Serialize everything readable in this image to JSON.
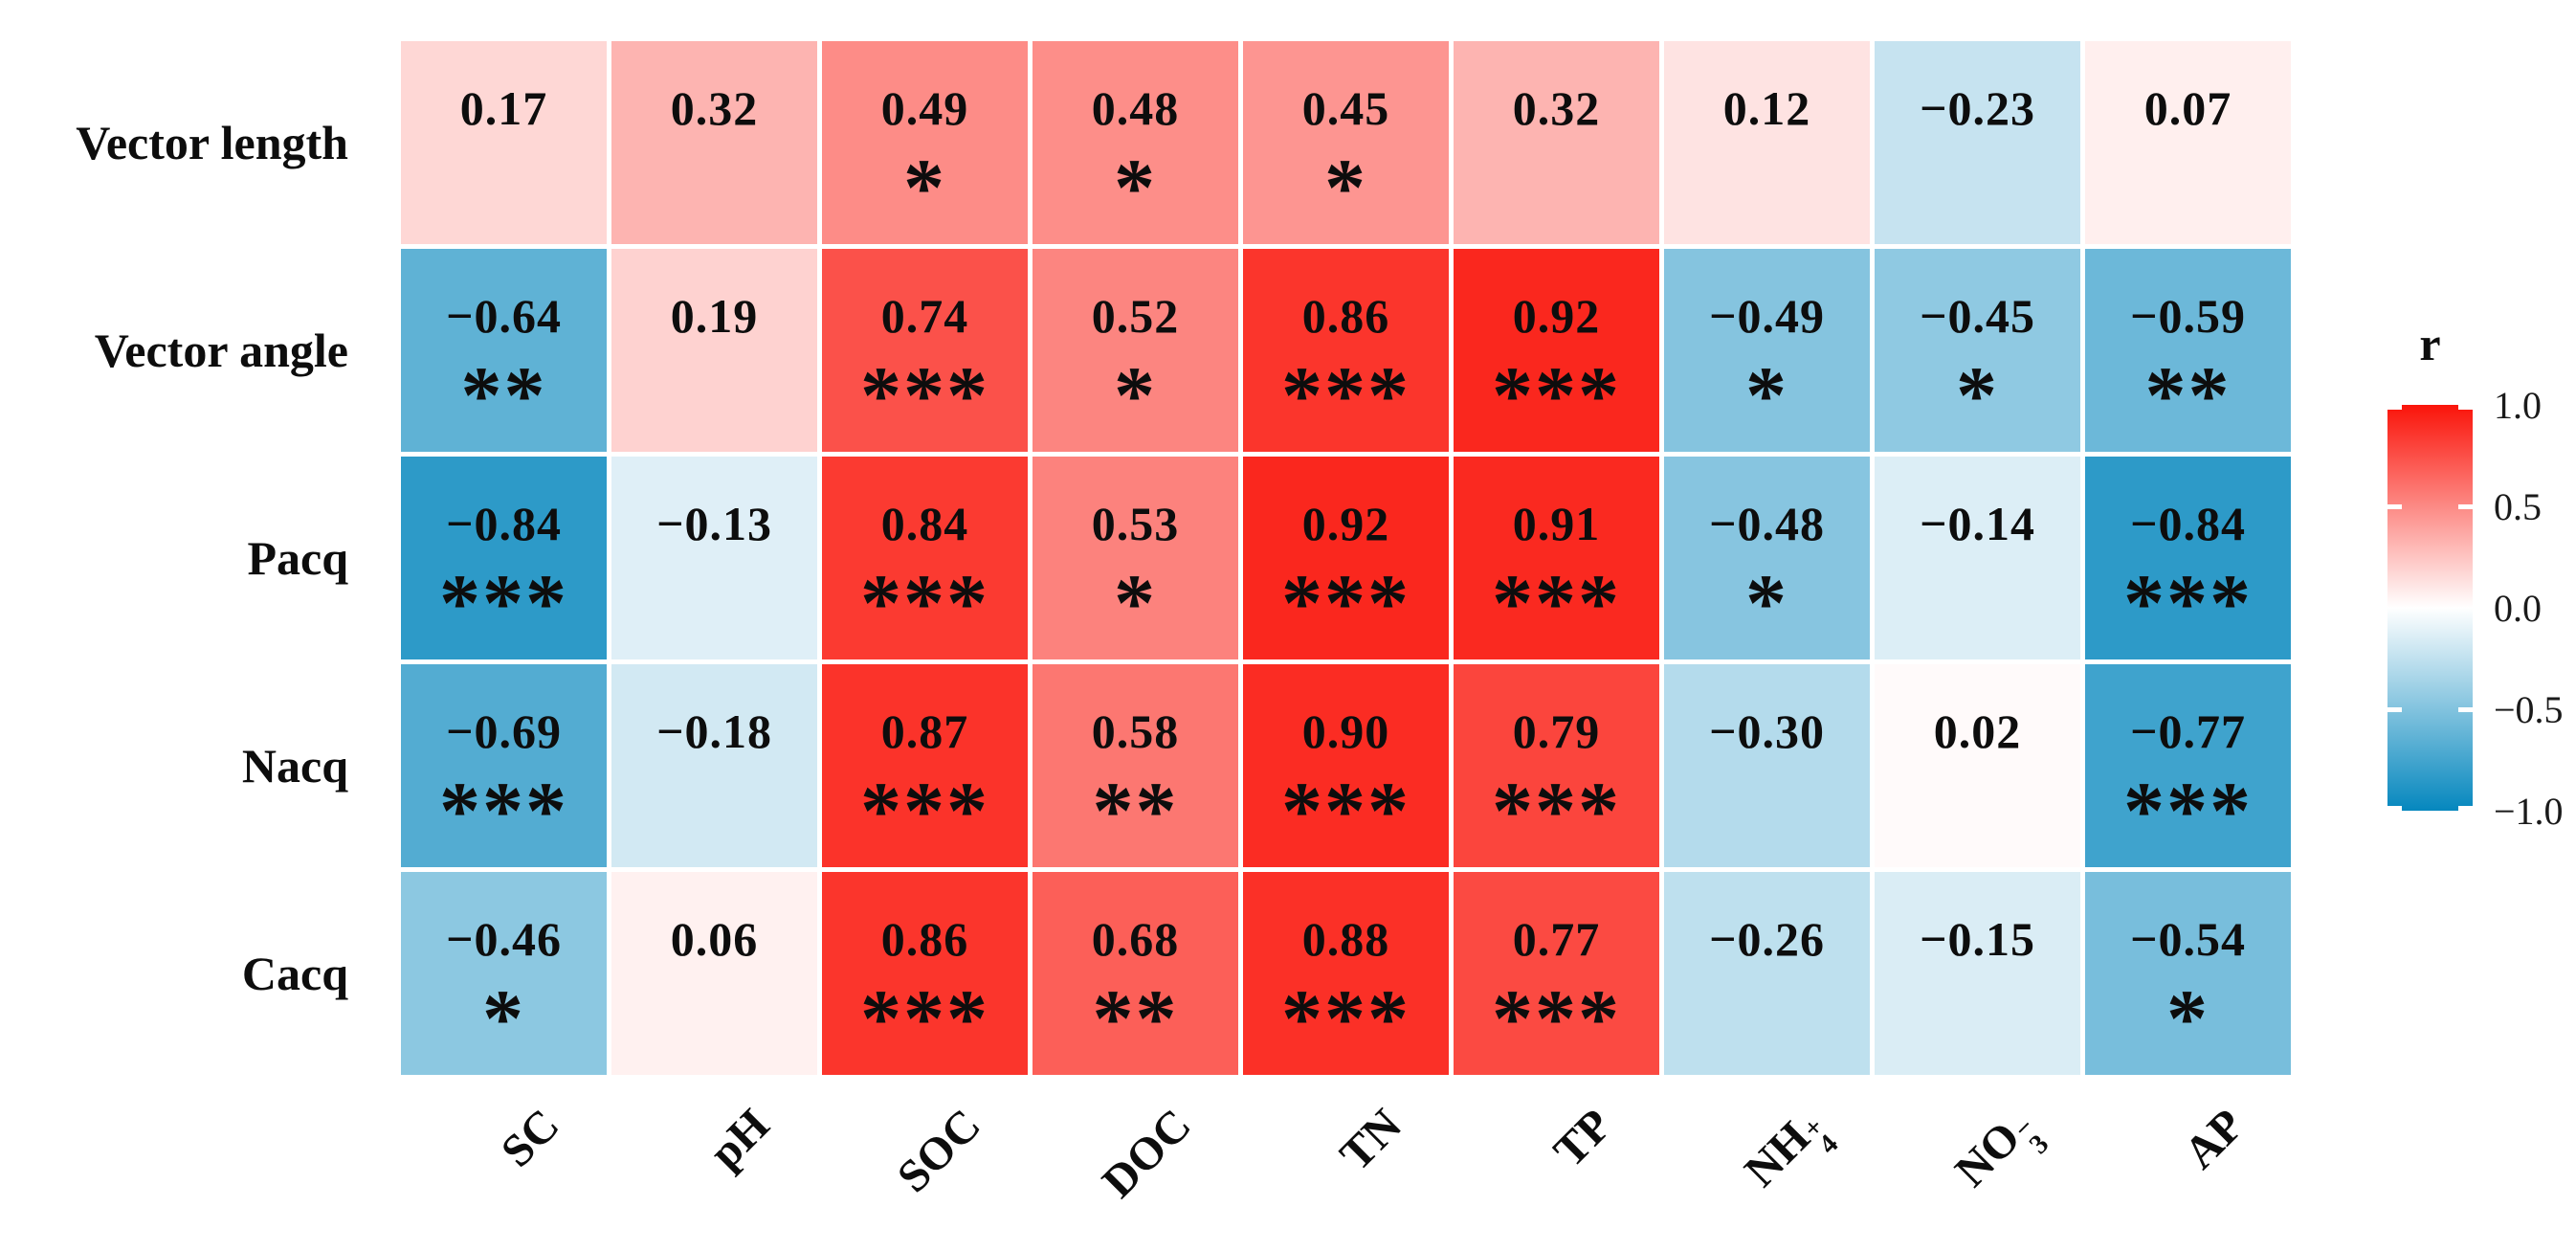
{
  "figure": {
    "background": "#ffffff",
    "text_color": "#0d0d0d"
  },
  "chart_data": {
    "type": "heatmap",
    "description": "Correlation heatmap of r values with significance stars",
    "rows": [
      "Vector length",
      "Vector angle",
      "Pacq",
      "Nacq",
      "Cacq"
    ],
    "columns": [
      {
        "text": "SC"
      },
      {
        "text": "pH"
      },
      {
        "text": "SOC"
      },
      {
        "text": "DOC"
      },
      {
        "text": "TN"
      },
      {
        "text": "TP"
      },
      {
        "text": "NH",
        "sub": "4",
        "sup": "+"
      },
      {
        "text": "NO",
        "sub": "3",
        "sup": "−"
      },
      {
        "text": "AP"
      }
    ],
    "values": [
      [
        0.17,
        0.32,
        0.49,
        0.48,
        0.45,
        0.32,
        0.12,
        -0.23,
        0.07
      ],
      [
        -0.64,
        0.19,
        0.74,
        0.52,
        0.86,
        0.92,
        -0.49,
        -0.45,
        -0.59
      ],
      [
        -0.84,
        -0.13,
        0.84,
        0.53,
        0.92,
        0.91,
        -0.48,
        -0.14,
        -0.84
      ],
      [
        -0.69,
        -0.18,
        0.87,
        0.58,
        0.9,
        0.79,
        -0.3,
        0.02,
        -0.77
      ],
      [
        -0.46,
        0.06,
        0.86,
        0.68,
        0.88,
        0.77,
        -0.26,
        -0.15,
        -0.54
      ]
    ],
    "significance": [
      [
        "",
        "",
        "*",
        "*",
        "*",
        "",
        "",
        "",
        ""
      ],
      [
        "**",
        "",
        "***",
        "*",
        "***",
        "***",
        "*",
        "*",
        "**"
      ],
      [
        "***",
        "",
        "***",
        "*",
        "***",
        "***",
        "*",
        "",
        "***"
      ],
      [
        "***",
        "",
        "***",
        "**",
        "***",
        "***",
        "",
        "",
        "***"
      ],
      [
        "*",
        "",
        "***",
        "**",
        "***",
        "***",
        "",
        "",
        "*"
      ]
    ],
    "colorscale": {
      "positive_end": "#fa140a",
      "mid": "#ffffff",
      "negative_end": "#0587be",
      "domain": [
        -1,
        1
      ]
    },
    "legend": {
      "title": "r",
      "ticks": [
        {
          "label": "1.0",
          "value": 1.0
        },
        {
          "label": "0.5",
          "value": 0.5
        },
        {
          "label": "0.0",
          "value": 0.0
        },
        {
          "label": "−0.5",
          "value": -0.5
        },
        {
          "label": "−1.0",
          "value": -1.0
        }
      ],
      "marked_values": [
        1.0,
        0.5,
        -0.5,
        -1.0
      ]
    }
  }
}
